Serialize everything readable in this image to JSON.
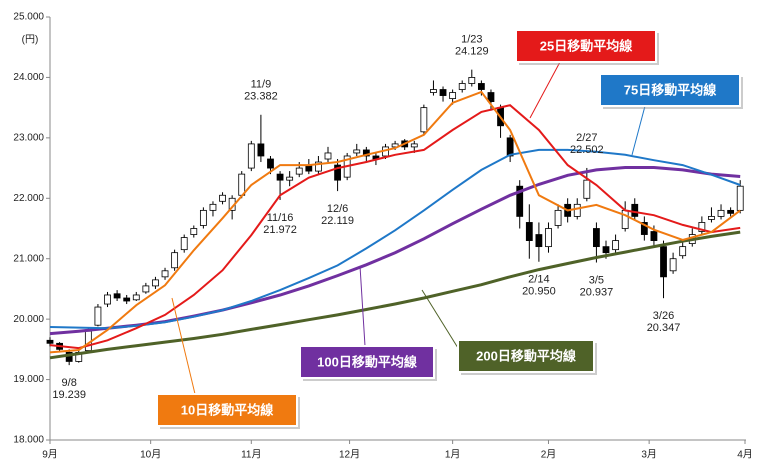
{
  "chart_data": {
    "type": "candlestick",
    "y_unit": "(円)",
    "xlim": [
      0,
      145
    ],
    "ylim": [
      18000,
      25000
    ],
    "yticks": [
      {
        "value": 18000,
        "label": "18.000"
      },
      {
        "value": 19000,
        "label": "19.000"
      },
      {
        "value": 20000,
        "label": "20.000"
      },
      {
        "value": 21000,
        "label": "21.000"
      },
      {
        "value": 22000,
        "label": "22.000"
      },
      {
        "value": 23000,
        "label": "23.000"
      },
      {
        "value": 24000,
        "label": "24.000"
      },
      {
        "value": 25000,
        "label": "25.000"
      }
    ],
    "xticks": [
      {
        "value": 0,
        "label": "9月"
      },
      {
        "value": 21,
        "label": "10月"
      },
      {
        "value": 42,
        "label": "11月"
      },
      {
        "value": 62.5,
        "label": "12月"
      },
      {
        "value": 84,
        "label": "1月"
      },
      {
        "value": 104,
        "label": "2月"
      },
      {
        "value": 125,
        "label": "3月"
      },
      {
        "value": 145,
        "label": "4月"
      }
    ],
    "candles": {
      "x": [
        0,
        2,
        4,
        6,
        8,
        10,
        12,
        14,
        16,
        18,
        20,
        22,
        24,
        26,
        28,
        30,
        32,
        34,
        36,
        38,
        40,
        42,
        44,
        46,
        48,
        50,
        52,
        54,
        56,
        58,
        60,
        62,
        64,
        66,
        68,
        70,
        72,
        74,
        76,
        78,
        80,
        82,
        84,
        86,
        88,
        90,
        92,
        94,
        96,
        98,
        100,
        102,
        104,
        106,
        108,
        110,
        112,
        114,
        116,
        118,
        120,
        122,
        124,
        126,
        128,
        130,
        132,
        134,
        136,
        138,
        140,
        142,
        144
      ],
      "open": [
        19650,
        19600,
        19450,
        19300,
        19480,
        19900,
        20250,
        20420,
        20350,
        20320,
        20450,
        20550,
        20700,
        20850,
        21150,
        21400,
        21550,
        21800,
        21950,
        21800,
        22050,
        22500,
        22900,
        22650,
        22400,
        22300,
        22400,
        22550,
        22450,
        22650,
        22550,
        22350,
        22750,
        22800,
        22700,
        22700,
        22850,
        22950,
        22850,
        23100,
        23750,
        23800,
        23650,
        23800,
        23900,
        23900,
        23750,
        23500,
        23000,
        22200,
        21600,
        21400,
        21200,
        21550,
        21900,
        21700,
        22000,
        21500,
        21200,
        21150,
        21500,
        21900,
        21600,
        21450,
        21200,
        20800,
        21050,
        21250,
        21450,
        21650,
        21700,
        21800,
        21800
      ],
      "high": [
        19700,
        19620,
        19500,
        19480,
        19850,
        20250,
        20450,
        20480,
        20400,
        20450,
        20600,
        20700,
        20850,
        21150,
        21400,
        21550,
        21850,
        21950,
        22100,
        22050,
        22450,
        22950,
        23382,
        22700,
        22450,
        22450,
        22600,
        22650,
        22700,
        22850,
        22650,
        22750,
        22900,
        22850,
        22750,
        22900,
        22950,
        22980,
        22950,
        23550,
        23950,
        23850,
        23800,
        23950,
        24129,
        23950,
        23800,
        23550,
        23050,
        22300,
        21900,
        21600,
        21600,
        21900,
        22000,
        22000,
        22502,
        21600,
        21300,
        21400,
        21950,
        22000,
        21700,
        21550,
        21300,
        21100,
        21300,
        21500,
        21700,
        21850,
        21900,
        21850,
        22300
      ],
      "low": [
        19550,
        19450,
        19239,
        19280,
        19450,
        19880,
        20200,
        20300,
        20250,
        20300,
        20420,
        20500,
        20650,
        20800,
        21100,
        21350,
        21500,
        21700,
        21900,
        21650,
        22000,
        22450,
        22600,
        22400,
        21972,
        22200,
        22350,
        22400,
        22400,
        22600,
        22119,
        22300,
        22700,
        22600,
        22550,
        22650,
        22800,
        22800,
        22750,
        23050,
        23700,
        23600,
        23550,
        23750,
        23850,
        23700,
        23450,
        23000,
        22600,
        21500,
        21000,
        20950,
        21100,
        21500,
        21600,
        21650,
        21950,
        20937,
        21000,
        21100,
        21450,
        21650,
        21300,
        21200,
        20347,
        20750,
        21000,
        21200,
        21400,
        21600,
        21650,
        21700,
        21750
      ],
      "close": [
        19600,
        19500,
        19300,
        19450,
        19800,
        20200,
        20400,
        20350,
        20300,
        20400,
        20550,
        20650,
        20800,
        21100,
        21350,
        21500,
        21800,
        21900,
        22050,
        22000,
        22400,
        22900,
        22700,
        22500,
        22300,
        22350,
        22500,
        22450,
        22600,
        22750,
        22300,
        22700,
        22800,
        22700,
        22650,
        22850,
        22900,
        22850,
        22900,
        23500,
        23800,
        23700,
        23750,
        23900,
        24000,
        23800,
        23600,
        23200,
        22700,
        21700,
        21300,
        21200,
        21500,
        21800,
        21700,
        21900,
        22300,
        21200,
        21100,
        21300,
        21800,
        21700,
        21400,
        21300,
        20700,
        21000,
        21200,
        21400,
        21600,
        21700,
        21800,
        21750,
        22200
      ]
    },
    "series": [
      {
        "name": "10日移動平均線",
        "color": "#f07a10",
        "x": [
          0,
          6,
          12,
          18,
          24,
          30,
          36,
          42,
          48,
          54,
          60,
          66,
          72,
          78,
          84,
          90,
          96,
          102,
          108,
          114,
          120,
          126,
          132,
          138,
          144
        ],
        "values": [
          19450,
          19490,
          19820,
          20230,
          20560,
          21140,
          21670,
          22220,
          22550,
          22550,
          22600,
          22720,
          22830,
          23050,
          23580,
          23760,
          23130,
          22050,
          21800,
          21890,
          21720,
          21480,
          21310,
          21440,
          21800
        ]
      },
      {
        "name": "25日移動平均線",
        "color": "#e41a1a",
        "x": [
          0,
          6,
          12,
          18,
          24,
          30,
          36,
          42,
          48,
          54,
          60,
          66,
          72,
          78,
          84,
          90,
          96,
          102,
          108,
          114,
          120,
          126,
          132,
          138,
          144
        ],
        "values": [
          19570,
          19520,
          19650,
          19850,
          20070,
          20400,
          20810,
          21390,
          22050,
          22340,
          22500,
          22600,
          22720,
          22800,
          23130,
          23430,
          23540,
          23130,
          22550,
          22220,
          21800,
          21720,
          21560,
          21440,
          21510
        ]
      },
      {
        "name": "75日移動平均線",
        "color": "#1f78c8",
        "x": [
          0,
          6,
          12,
          18,
          24,
          30,
          36,
          42,
          48,
          54,
          60,
          66,
          72,
          78,
          84,
          90,
          96,
          102,
          108,
          114,
          120,
          126,
          132,
          138,
          144
        ],
        "values": [
          19870,
          19860,
          19850,
          19890,
          19950,
          20040,
          20150,
          20300,
          20480,
          20680,
          20890,
          21170,
          21470,
          21800,
          22140,
          22470,
          22720,
          22800,
          22800,
          22770,
          22720,
          22630,
          22550,
          22390,
          22220
        ]
      },
      {
        "name": "100日移動平均線",
        "color": "#7030a0",
        "x": [
          0,
          6,
          12,
          18,
          24,
          30,
          36,
          42,
          48,
          54,
          60,
          66,
          72,
          78,
          84,
          90,
          96,
          102,
          108,
          114,
          120,
          126,
          132,
          138,
          144
        ],
        "values": [
          19760,
          19800,
          19850,
          19900,
          19960,
          20050,
          20150,
          20270,
          20400,
          20550,
          20720,
          20900,
          21100,
          21330,
          21580,
          21820,
          22050,
          22230,
          22380,
          22470,
          22510,
          22510,
          22470,
          22400,
          22360
        ]
      },
      {
        "name": "200日移動平均線",
        "color": "#4f6228",
        "x": [
          0,
          6,
          12,
          18,
          24,
          30,
          36,
          42,
          48,
          54,
          60,
          66,
          72,
          78,
          84,
          90,
          96,
          102,
          108,
          114,
          120,
          126,
          132,
          138,
          144
        ],
        "values": [
          19360,
          19430,
          19500,
          19560,
          19620,
          19680,
          19750,
          19830,
          19910,
          19990,
          20070,
          20160,
          20250,
          20350,
          20460,
          20570,
          20700,
          20820,
          20920,
          21020,
          21110,
          21200,
          21290,
          21370,
          21440
        ]
      }
    ],
    "annotations": [
      {
        "date": "9/8",
        "x": 4,
        "value": 19239,
        "value_label": "19.239"
      },
      {
        "date": "11/9",
        "x": 44,
        "value": 23382,
        "value_label": "23.382"
      },
      {
        "date": "11/16",
        "x": 48,
        "value": 21972,
        "value_label": "21.972"
      },
      {
        "date": "12/6",
        "x": 60,
        "value": 22119,
        "value_label": "22.119"
      },
      {
        "date": "1/23",
        "x": 88,
        "value": 24129,
        "value_label": "24.129"
      },
      {
        "date": "2/14",
        "x": 102,
        "value": 20950,
        "value_label": "20.950"
      },
      {
        "date": "2/27",
        "x": 112,
        "value": 22502,
        "value_label": "22.502"
      },
      {
        "date": "3/5",
        "x": 114,
        "value": 20937,
        "value_label": "20.937"
      },
      {
        "date": "3/26",
        "x": 128,
        "value": 20347,
        "value_label": "20.347"
      }
    ]
  }
}
